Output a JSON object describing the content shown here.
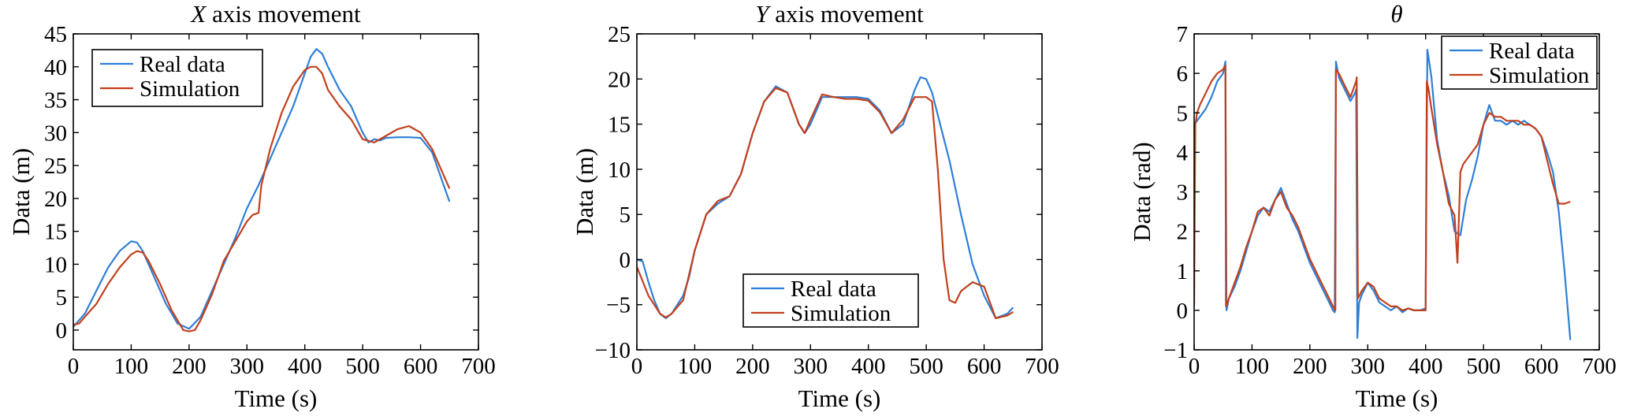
{
  "figure": {
    "colors": {
      "real": "#2f7fd6",
      "sim": "#c2401d"
    },
    "legend_labels": [
      "Real data",
      "Simulation"
    ]
  },
  "chart_data": [
    {
      "type": "line",
      "title_italic": "X",
      "title_rest": " axis movement",
      "xlabel": "Time (s)",
      "ylabel": "Data (m)",
      "xlim": [
        0,
        700
      ],
      "ylim": [
        -3,
        45
      ],
      "xticks": [
        0,
        100,
        200,
        300,
        400,
        500,
        600,
        700
      ],
      "yticks": [
        0,
        5,
        10,
        15,
        20,
        25,
        30,
        35,
        40,
        45
      ],
      "legend_position": "top-left",
      "grid": false,
      "series": [
        {
          "name": "Real data",
          "color": "#2f7fd6",
          "x": [
            0,
            20,
            40,
            60,
            80,
            100,
            110,
            120,
            140,
            160,
            180,
            200,
            220,
            240,
            260,
            280,
            300,
            320,
            340,
            360,
            380,
            400,
            410,
            420,
            430,
            440,
            460,
            480,
            500,
            510,
            520,
            530,
            540,
            560,
            580,
            600,
            620,
            640,
            650
          ],
          "y": [
            0.5,
            2.5,
            6,
            9.5,
            12,
            13.5,
            13.3,
            12,
            8,
            4,
            1,
            0.2,
            2,
            6,
            10,
            14,
            18.5,
            22,
            26,
            30,
            34,
            39,
            41.5,
            42.7,
            42,
            40,
            36.5,
            34,
            30,
            28.5,
            29,
            28.8,
            29.2,
            29.3,
            29.3,
            29.2,
            27,
            22,
            19.5
          ]
        },
        {
          "name": "Simulation",
          "color": "#c2401d",
          "x": [
            0,
            10,
            20,
            40,
            60,
            80,
            100,
            110,
            120,
            130,
            150,
            170,
            190,
            200,
            210,
            220,
            240,
            260,
            280,
            300,
            310,
            320,
            325,
            340,
            360,
            380,
            400,
            410,
            420,
            430,
            440,
            460,
            480,
            500,
            520,
            540,
            560,
            580,
            600,
            620,
            640,
            650
          ],
          "y": [
            0.8,
            1,
            2,
            4,
            7,
            9.5,
            11.5,
            12,
            11.8,
            10.5,
            7,
            3,
            0,
            -0.2,
            0,
            1.5,
            5.5,
            10.5,
            13.5,
            16.5,
            17.5,
            17.8,
            22,
            27.5,
            33,
            37,
            39.5,
            40,
            40,
            39,
            36.5,
            34,
            32,
            29,
            28.5,
            29.5,
            30.5,
            31,
            30,
            27.5,
            23.5,
            21.5
          ]
        }
      ]
    },
    {
      "type": "line",
      "title_italic": "Y",
      "title_rest": " axis movement",
      "xlabel": "Time (s)",
      "ylabel": "Data (m)",
      "xlim": [
        0,
        700
      ],
      "ylim": [
        -10,
        25
      ],
      "xticks": [
        0,
        100,
        200,
        300,
        400,
        500,
        600,
        700
      ],
      "yticks": [
        -10,
        -5,
        0,
        5,
        10,
        15,
        20,
        25
      ],
      "legend_position": "bottom-center",
      "grid": false,
      "series": [
        {
          "name": "Real data",
          "color": "#2f7fd6",
          "x": [
            0,
            10,
            20,
            30,
            40,
            50,
            60,
            70,
            80,
            90,
            100,
            120,
            140,
            160,
            180,
            200,
            220,
            240,
            260,
            280,
            290,
            300,
            320,
            340,
            360,
            380,
            400,
            420,
            440,
            460,
            480,
            490,
            500,
            510,
            520,
            540,
            560,
            580,
            600,
            620,
            640,
            650
          ],
          "y": [
            0,
            -0.2,
            -2.5,
            -4.5,
            -6,
            -6.5,
            -6,
            -5,
            -4,
            -2,
            1,
            5,
            6.2,
            7,
            9.5,
            14,
            17.5,
            19.2,
            18.5,
            15,
            14,
            15,
            18,
            18,
            18,
            18,
            17.8,
            16.5,
            14,
            15,
            18.8,
            20.2,
            20,
            18.5,
            16,
            11,
            5,
            -0.5,
            -4,
            -6.5,
            -6,
            -5.3
          ]
        },
        {
          "name": "Simulation",
          "color": "#c2401d",
          "x": [
            0,
            20,
            40,
            50,
            60,
            80,
            100,
            120,
            140,
            160,
            180,
            200,
            220,
            240,
            260,
            280,
            290,
            300,
            320,
            340,
            360,
            380,
            400,
            420,
            440,
            460,
            480,
            500,
            510,
            520,
            530,
            540,
            550,
            560,
            580,
            600,
            620,
            640,
            650
          ],
          "y": [
            -0.8,
            -4,
            -6,
            -6.4,
            -6,
            -4.5,
            1,
            5,
            6.5,
            7,
            9.5,
            14,
            17.5,
            19,
            18.5,
            15,
            14,
            15.5,
            18.3,
            18,
            17.8,
            17.8,
            17.6,
            16.3,
            14,
            15.5,
            18,
            18,
            17.5,
            10,
            0,
            -4.5,
            -4.8,
            -3.5,
            -2.5,
            -3,
            -6.5,
            -6.2,
            -5.8
          ]
        }
      ]
    },
    {
      "type": "line",
      "title_italic": "θ",
      "title_rest": "",
      "xlabel": "Time (s)",
      "ylabel": "Data (rad)",
      "xlim": [
        0,
        700
      ],
      "ylim": [
        -1,
        7
      ],
      "xticks": [
        0,
        100,
        200,
        300,
        400,
        500,
        600,
        700
      ],
      "yticks": [
        -1,
        0,
        1,
        2,
        3,
        4,
        5,
        6,
        7
      ],
      "legend_position": "top-right",
      "grid": false,
      "series": [
        {
          "name": "Real data",
          "color": "#2f7fd6",
          "x": [
            0,
            10,
            20,
            30,
            40,
            50,
            54,
            56,
            60,
            70,
            80,
            90,
            100,
            110,
            120,
            130,
            140,
            150,
            160,
            170,
            180,
            190,
            200,
            210,
            220,
            230,
            240,
            243,
            245,
            250,
            260,
            270,
            278,
            280,
            282,
            285,
            290,
            300,
            310,
            320,
            330,
            340,
            350,
            360,
            370,
            380,
            390,
            400,
            403,
            405,
            410,
            420,
            430,
            440,
            450,
            460,
            470,
            480,
            490,
            500,
            510,
            520,
            530,
            540,
            550,
            560,
            570,
            580,
            590,
            600,
            610,
            620,
            630,
            640,
            650
          ],
          "y": [
            4.7,
            4.9,
            5.1,
            5.4,
            5.8,
            6.0,
            6.3,
            0,
            0.3,
            0.6,
            1.0,
            1.5,
            2.0,
            2.4,
            2.6,
            2.5,
            2.8,
            3.1,
            2.7,
            2.3,
            2.0,
            1.6,
            1.2,
            0.9,
            0.6,
            0.3,
            0.0,
            -0.05,
            6.3,
            5.9,
            5.6,
            5.3,
            5.5,
            5.6,
            -0.7,
            0.2,
            0.4,
            0.7,
            0.5,
            0.2,
            0.1,
            0.0,
            0.1,
            -0.05,
            0.05,
            0.0,
            0.0,
            0.05,
            6.6,
            6.4,
            5.9,
            4.3,
            3.5,
            2.9,
            2.0,
            1.9,
            2.8,
            3.3,
            3.9,
            4.7,
            5.2,
            4.8,
            4.8,
            4.7,
            4.8,
            4.7,
            4.8,
            4.7,
            4.6,
            4.4,
            4.0,
            3.5,
            2.5,
            1.0,
            -0.75
          ]
        },
        {
          "name": "Simulation",
          "color": "#c2401d",
          "x": [
            0,
            2,
            5,
            10,
            20,
            30,
            40,
            50,
            54,
            55,
            58,
            60,
            70,
            80,
            90,
            100,
            110,
            120,
            130,
            140,
            150,
            160,
            170,
            180,
            190,
            200,
            210,
            220,
            230,
            240,
            244,
            245,
            250,
            260,
            270,
            280,
            281,
            283,
            290,
            300,
            310,
            320,
            330,
            340,
            350,
            360,
            370,
            380,
            390,
            400,
            402,
            405,
            410,
            420,
            430,
            440,
            450,
            455,
            460,
            465,
            470,
            480,
            490,
            500,
            510,
            520,
            530,
            540,
            550,
            560,
            570,
            580,
            590,
            600,
            610,
            620,
            630,
            640,
            650
          ],
          "y": [
            0.1,
            4.7,
            5.0,
            5.2,
            5.5,
            5.8,
            6.0,
            6.1,
            6.2,
            0.1,
            0.2,
            0.3,
            0.7,
            1.1,
            1.6,
            2.0,
            2.5,
            2.6,
            2.4,
            2.8,
            3.0,
            2.6,
            2.4,
            2.1,
            1.7,
            1.3,
            1.0,
            0.7,
            0.4,
            0.1,
            0.0,
            6.1,
            6.0,
            5.7,
            5.4,
            5.8,
            5.9,
            0.3,
            0.5,
            0.7,
            0.6,
            0.3,
            0.2,
            0.1,
            0.1,
            0.0,
            0.05,
            0.0,
            0.0,
            0.0,
            5.8,
            5.6,
            5.1,
            4.2,
            3.5,
            2.7,
            2.4,
            1.2,
            3.5,
            3.7,
            3.8,
            4.0,
            4.2,
            4.7,
            5.0,
            4.9,
            4.9,
            4.8,
            4.8,
            4.8,
            4.7,
            4.7,
            4.6,
            4.4,
            3.8,
            3.2,
            2.7,
            2.7,
            2.75
          ]
        }
      ]
    }
  ]
}
